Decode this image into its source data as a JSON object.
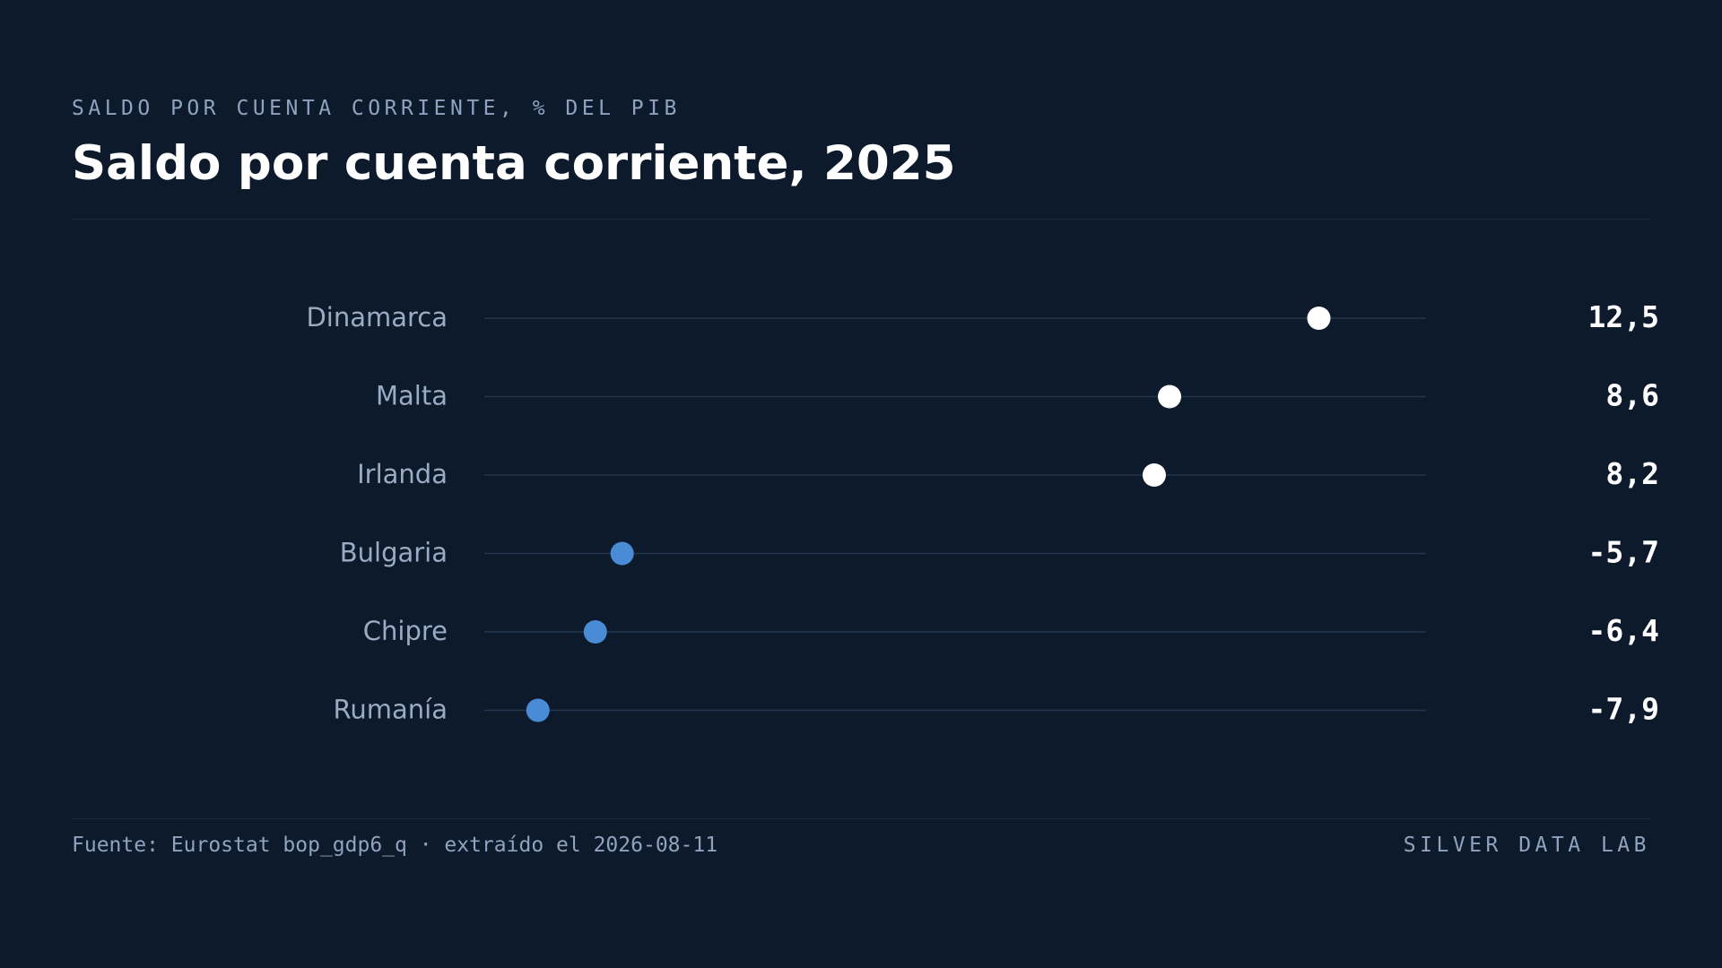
{
  "header": {
    "eyebrow": "SALDO POR CUENTA CORRIENTE, % DEL PIB",
    "title": "Saldo por cuenta corriente, 2025"
  },
  "footer": {
    "source": "Fuente: Eurostat bop_gdp6_q · extraído el 2026-08-11",
    "brand": "SILVER DATA LAB"
  },
  "colors": {
    "background": "#0c1a2b",
    "positive_dot": "#ffffff",
    "negative_dot": "#4a8bd6",
    "track": "#23364e",
    "label": "#9aabc4",
    "value": "#ffffff"
  },
  "chart_data": {
    "type": "dot",
    "title": "Saldo por cuenta corriente, 2025",
    "subtitle": "SALDO POR CUENTA CORRIENTE, % DEL PIB",
    "unit": "% del PIB",
    "xlim": [
      -9.3,
      15.3
    ],
    "grid": false,
    "categories": [
      "Dinamarca",
      "Malta",
      "Irlanda",
      "Bulgaria",
      "Chipre",
      "Rumanía"
    ],
    "values": [
      12.5,
      8.6,
      8.2,
      -5.7,
      -6.4,
      -7.9
    ],
    "value_labels": [
      "12,5",
      "8,6",
      "8,2",
      "-5,7",
      "-6,4",
      "-7,9"
    ]
  }
}
